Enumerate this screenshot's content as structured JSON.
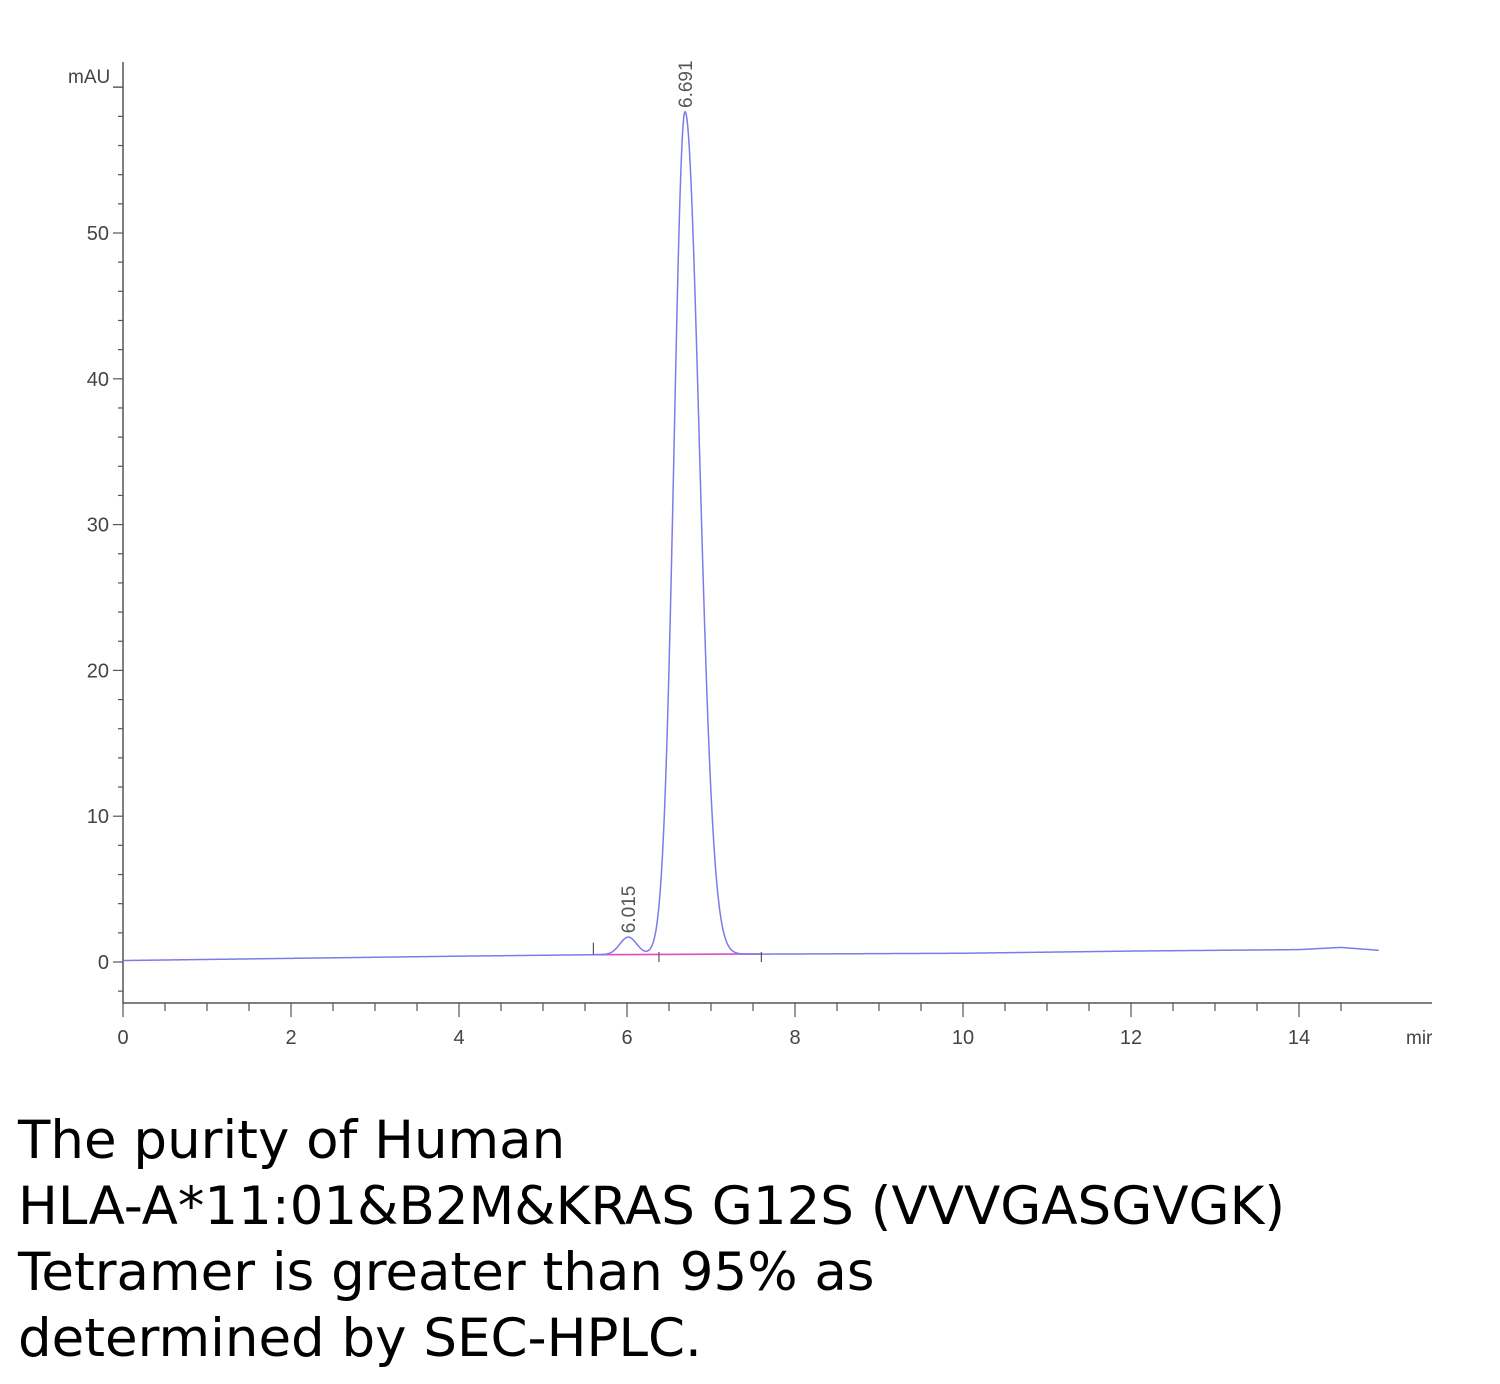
{
  "chart_data": {
    "type": "line",
    "y_unit": "mAU",
    "x_unit": "mir",
    "xlim": [
      0,
      14.95
    ],
    "ylim": [
      -3,
      61
    ],
    "x_ticks": [
      0,
      2,
      4,
      6,
      8,
      10,
      12,
      14
    ],
    "y_ticks": [
      0,
      10,
      20,
      30,
      40,
      50
    ],
    "grid": false,
    "series": [
      {
        "color": "#7b7bea",
        "peaks": [
          {
            "rt": 6.015,
            "height": 1.2,
            "sigma": 0.1
          },
          {
            "rt": 6.691,
            "height": 57.8,
            "sigma": 0.13,
            "tail_sigma": 0.17
          }
        ],
        "baseline": [
          [
            0,
            0.1
          ],
          [
            2,
            0.25
          ],
          [
            4,
            0.4
          ],
          [
            5.6,
            0.5
          ],
          [
            8,
            0.55
          ],
          [
            10,
            0.6
          ],
          [
            12,
            0.75
          ],
          [
            14,
            0.85
          ],
          [
            14.5,
            1.0
          ],
          [
            14.95,
            0.8
          ]
        ]
      }
    ],
    "integration_baseline": {
      "color": "#e24ac8",
      "x": [
        5.6,
        7.6
      ],
      "y": [
        0.5,
        0.55
      ]
    },
    "annotations": [
      {
        "text": "6.015",
        "x": 6.015,
        "y": 1.7
      },
      {
        "text": "6.691",
        "x": 6.691,
        "y": 58.3
      }
    ]
  },
  "caption": {
    "lines": [
      "The purity of Human",
      "HLA-A*11:01&B2M&KRAS G12S (VVVGASGVGK)",
      "Tetramer is greater than 95% as",
      "determined by SEC-HPLC."
    ]
  }
}
